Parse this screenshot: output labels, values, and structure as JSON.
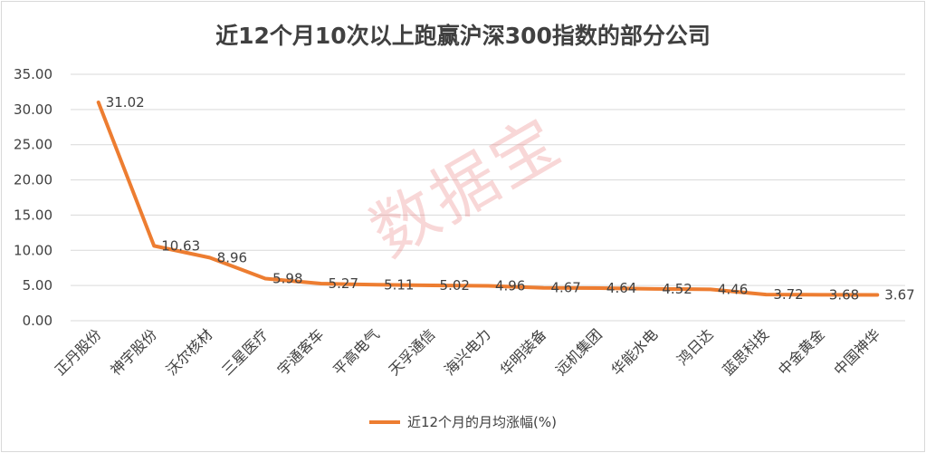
{
  "colors": {
    "series": "#ed7d31",
    "grid": "#d9d9d9",
    "text": "#404040"
  },
  "watermark": "数据宝",
  "chart_data": {
    "type": "line",
    "title": "近12个月10次以上跑赢沪深300指数的部分公司",
    "categories": [
      "正丹股份",
      "神宇股份",
      "沃尔核材",
      "三星医疗",
      "宇通客车",
      "平高电气",
      "天孚通信",
      "海兴电力",
      "华明装备",
      "远机集团",
      "华能水电",
      "鸿日达",
      "蓝思科技",
      "中金黄金",
      "中国神华"
    ],
    "series": [
      {
        "name": "近12个月的月均涨幅(%)",
        "values": [
          31.02,
          10.63,
          8.96,
          5.98,
          5.27,
          5.11,
          5.02,
          4.96,
          4.67,
          4.64,
          4.52,
          4.46,
          3.72,
          3.68,
          3.67
        ],
        "labels": [
          "31.02",
          "10.63",
          "8.96",
          "5.98",
          "5.27",
          "5.11",
          "5.02",
          "4.96",
          "4.67",
          "4.64",
          "4.52",
          "4.46",
          "3.72",
          "3.68",
          "3.67"
        ]
      }
    ],
    "ylim": [
      0,
      35
    ],
    "yticks": [
      0,
      5,
      10,
      15,
      20,
      25,
      30,
      35
    ],
    "ytick_labels": [
      "0.00",
      "5.00",
      "10.00",
      "15.00",
      "20.00",
      "25.00",
      "30.00",
      "35.00"
    ],
    "grid": true,
    "legend": "bottom"
  }
}
